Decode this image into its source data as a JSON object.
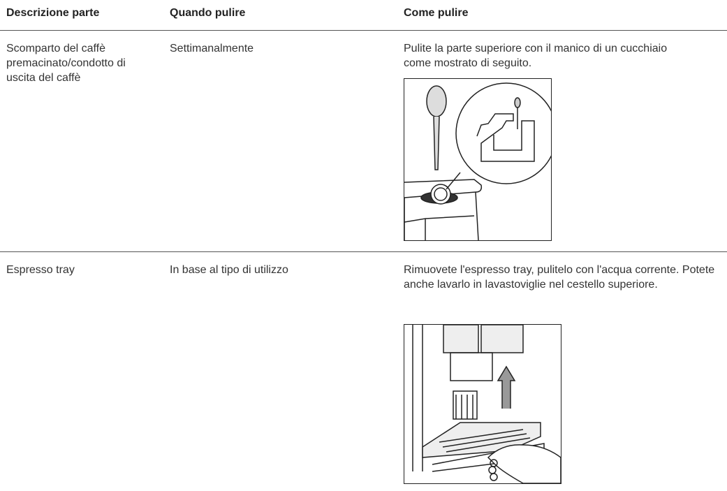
{
  "table": {
    "headers": [
      "Descrizione parte",
      "Quando pulire",
      "Come pulire"
    ],
    "rows": [
      [
        "Scomparto del caffè premacinato/condotto di uscita del caffè",
        "Settimanalmente",
        "Pulite la parte superiore con il manico di un cucchiaio come mostrato di seguito."
      ],
      [
        "Espresso tray",
        "In base al tipo di utilizzo",
        "Rimuovete l'espresso tray, pulitelo con l'acqua corrente. Potete anche lavarlo in lavastoviglie nel cestello superiore."
      ]
    ]
  }
}
